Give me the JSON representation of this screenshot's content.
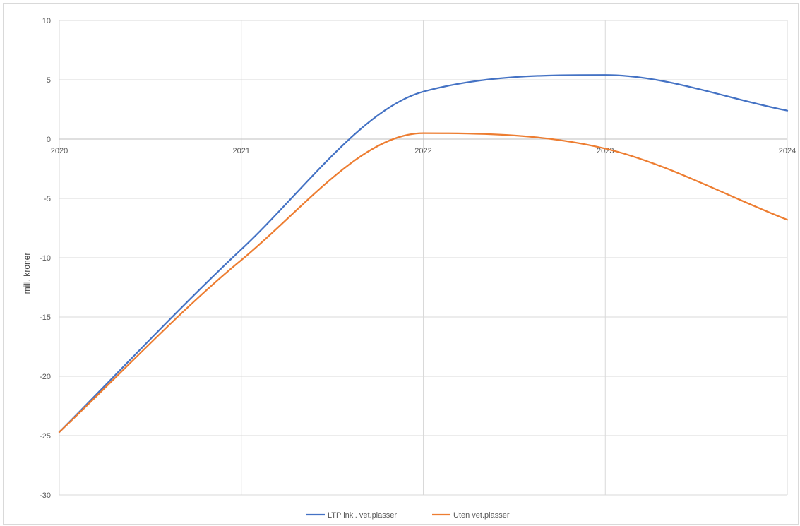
{
  "chart_data": {
    "type": "line",
    "title": "",
    "xlabel": "",
    "ylabel": "mill. kroner",
    "x": [
      2020,
      2021,
      2022,
      2023,
      2024
    ],
    "xlim": [
      2020,
      2024
    ],
    "ylim": [
      -30,
      10
    ],
    "yticks": [
      10,
      5,
      0,
      -5,
      -10,
      -15,
      -20,
      -25,
      -30
    ],
    "xtick_labels": [
      "2020",
      "2021",
      "2022",
      "2023",
      "2024"
    ],
    "ytick_labels": [
      "10",
      "5",
      "0",
      "-5",
      "-10",
      "-15",
      "-20",
      "-25",
      "-30"
    ],
    "grid": true,
    "legend_position": "bottom",
    "series": [
      {
        "name": "LTP inkl. vet.plasser",
        "color": "#4472c4",
        "values": [
          -24.7,
          -9.3,
          4.0,
          5.4,
          2.4
        ]
      },
      {
        "name": "Uten vet.plasser",
        "color": "#ed7d31",
        "values": [
          -24.7,
          -10.2,
          0.5,
          -0.8,
          -6.8
        ]
      }
    ]
  }
}
